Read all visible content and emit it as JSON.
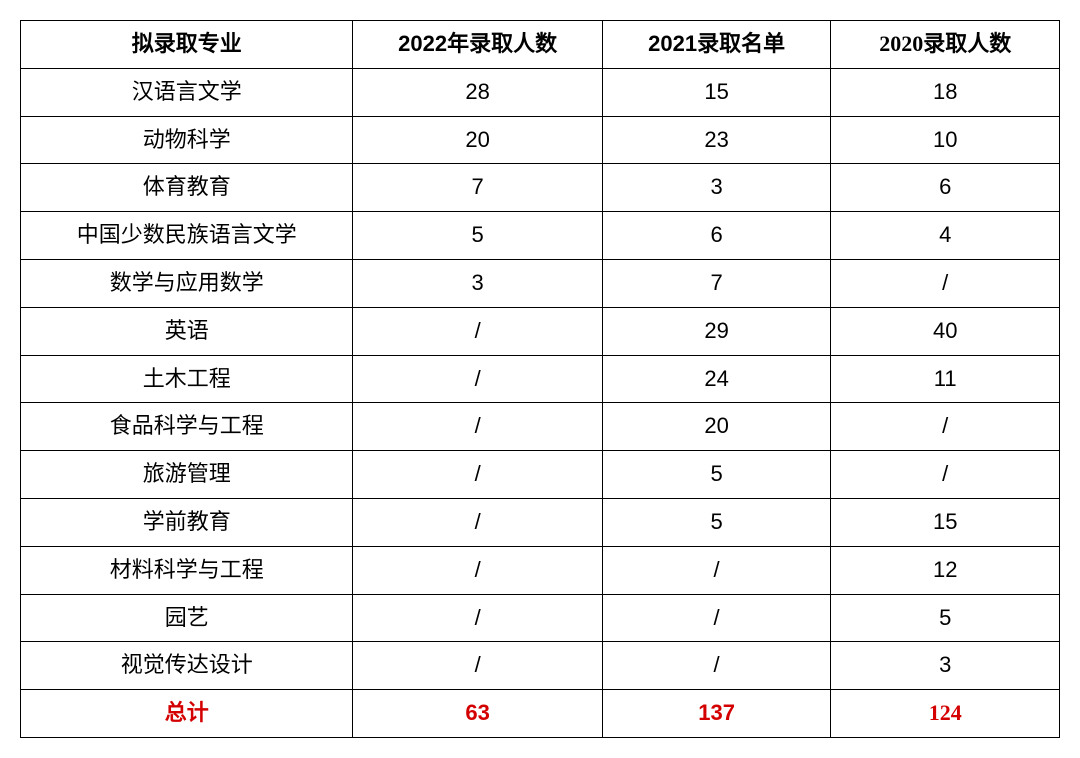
{
  "admission_table": {
    "type": "table",
    "border_color": "#000000",
    "background_color": "#ffffff",
    "header_fontsize_pt": 22,
    "cell_fontsize_pt": 22,
    "header_font_weight": "bold",
    "total_row_color": "#d40000",
    "total_row_font_weight": "bold",
    "column_widths_pct": [
      32,
      24,
      22,
      22
    ],
    "columns": [
      "拟录取专业",
      "2022年录取人数",
      "2021录取名单",
      "2020录取人数"
    ],
    "rows": [
      [
        "汉语言文学",
        "28",
        "15",
        "18"
      ],
      [
        "动物科学",
        "20",
        "23",
        "10"
      ],
      [
        "体育教育",
        "7",
        "3",
        "6"
      ],
      [
        "中国少数民族语言文学",
        "5",
        "6",
        "4"
      ],
      [
        "数学与应用数学",
        "3",
        "7",
        "/"
      ],
      [
        "英语",
        "/",
        "29",
        "40"
      ],
      [
        "土木工程",
        "/",
        "24",
        "11"
      ],
      [
        "食品科学与工程",
        "/",
        "20",
        "/"
      ],
      [
        "旅游管理",
        "/",
        "5",
        "/"
      ],
      [
        "学前教育",
        "/",
        "5",
        "15"
      ],
      [
        "材料科学与工程",
        "/",
        "/",
        "12"
      ],
      [
        "园艺",
        "/",
        "/",
        "5"
      ],
      [
        "视觉传达设计",
        "/",
        "/",
        "3"
      ]
    ],
    "total_row": [
      "总计",
      "63",
      "137",
      "124"
    ]
  }
}
